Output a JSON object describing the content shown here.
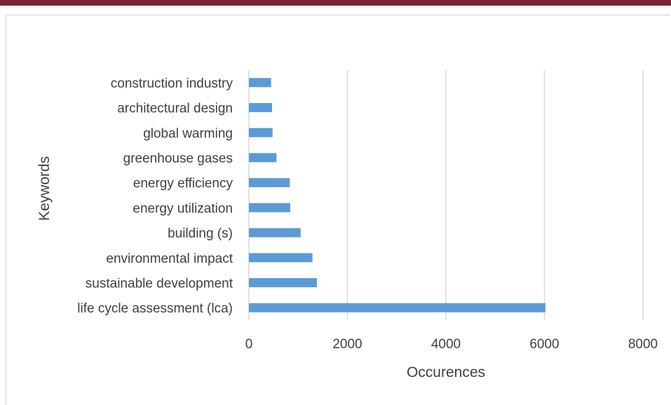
{
  "chart_data": {
    "type": "bar",
    "orientation": "horizontal",
    "title": "",
    "xlabel": "Occurences",
    "ylabel": "Keywords",
    "categories": [
      "life cycle assessment (lca)",
      "sustainable development",
      "environmental impact",
      "building (s)",
      "energy utilization",
      "energy efficiency",
      "greenhouse gases",
      "global warming",
      "architectural design",
      "construction industry"
    ],
    "values": [
      6020,
      1380,
      1290,
      1050,
      840,
      830,
      560,
      480,
      470,
      450
    ],
    "xlim": [
      0,
      8000
    ],
    "xticks": [
      "0",
      "2000",
      "4000",
      "6000",
      "8000"
    ],
    "grid": true,
    "bar_color": "#5b9bd5",
    "grid_color": "#d9d9d9"
  },
  "colors": {
    "top_bar": "#7b2230",
    "frame_border": "#d6d6d6",
    "text": "#404040"
  }
}
